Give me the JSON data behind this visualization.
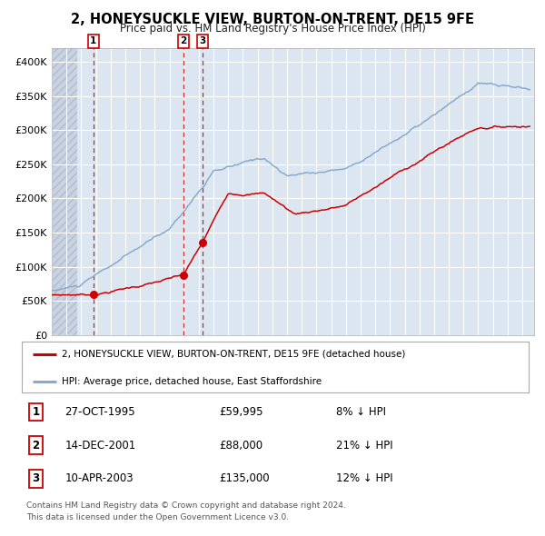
{
  "title": "2, HONEYSUCKLE VIEW, BURTON-ON-TRENT, DE15 9FE",
  "subtitle": "Price paid vs. HM Land Registry's House Price Index (HPI)",
  "title_fontsize": 10.5,
  "subtitle_fontsize": 8.5,
  "ylim": [
    0,
    420000
  ],
  "yticks": [
    0,
    50000,
    100000,
    150000,
    200000,
    250000,
    300000,
    350000,
    400000
  ],
  "ytick_labels": [
    "£0",
    "£50K",
    "£100K",
    "£150K",
    "£200K",
    "£250K",
    "£300K",
    "£350K",
    "£400K"
  ],
  "xlim_start": 1993.0,
  "xlim_end": 2025.8,
  "plot_bg_color": "#dce6f1",
  "grid_color": "#ffffff",
  "red_line_color": "#cc0000",
  "blue_line_color": "#88aacc",
  "sale_marker_color": "#cc0000",
  "vline_color": "#cc0000",
  "sale1_x": 1995.82,
  "sale1_y": 59995,
  "sale1_label": "27-OCT-1995",
  "sale1_price": "£59,995",
  "sale1_hpi": "8% ↓ HPI",
  "sale2_x": 2001.96,
  "sale2_y": 88000,
  "sale2_label": "14-DEC-2001",
  "sale2_price": "£88,000",
  "sale2_hpi": "21% ↓ HPI",
  "sale3_x": 2003.27,
  "sale3_y": 135000,
  "sale3_label": "10-APR-2003",
  "sale3_price": "£135,000",
  "sale3_hpi": "12% ↓ HPI",
  "legend1_text": "2, HONEYSUCKLE VIEW, BURTON-ON-TRENT, DE15 9FE (detached house)",
  "legend2_text": "HPI: Average price, detached house, East Staffordshire",
  "footer1": "Contains HM Land Registry data © Crown copyright and database right 2024.",
  "footer2": "This data is licensed under the Open Government Licence v3.0."
}
